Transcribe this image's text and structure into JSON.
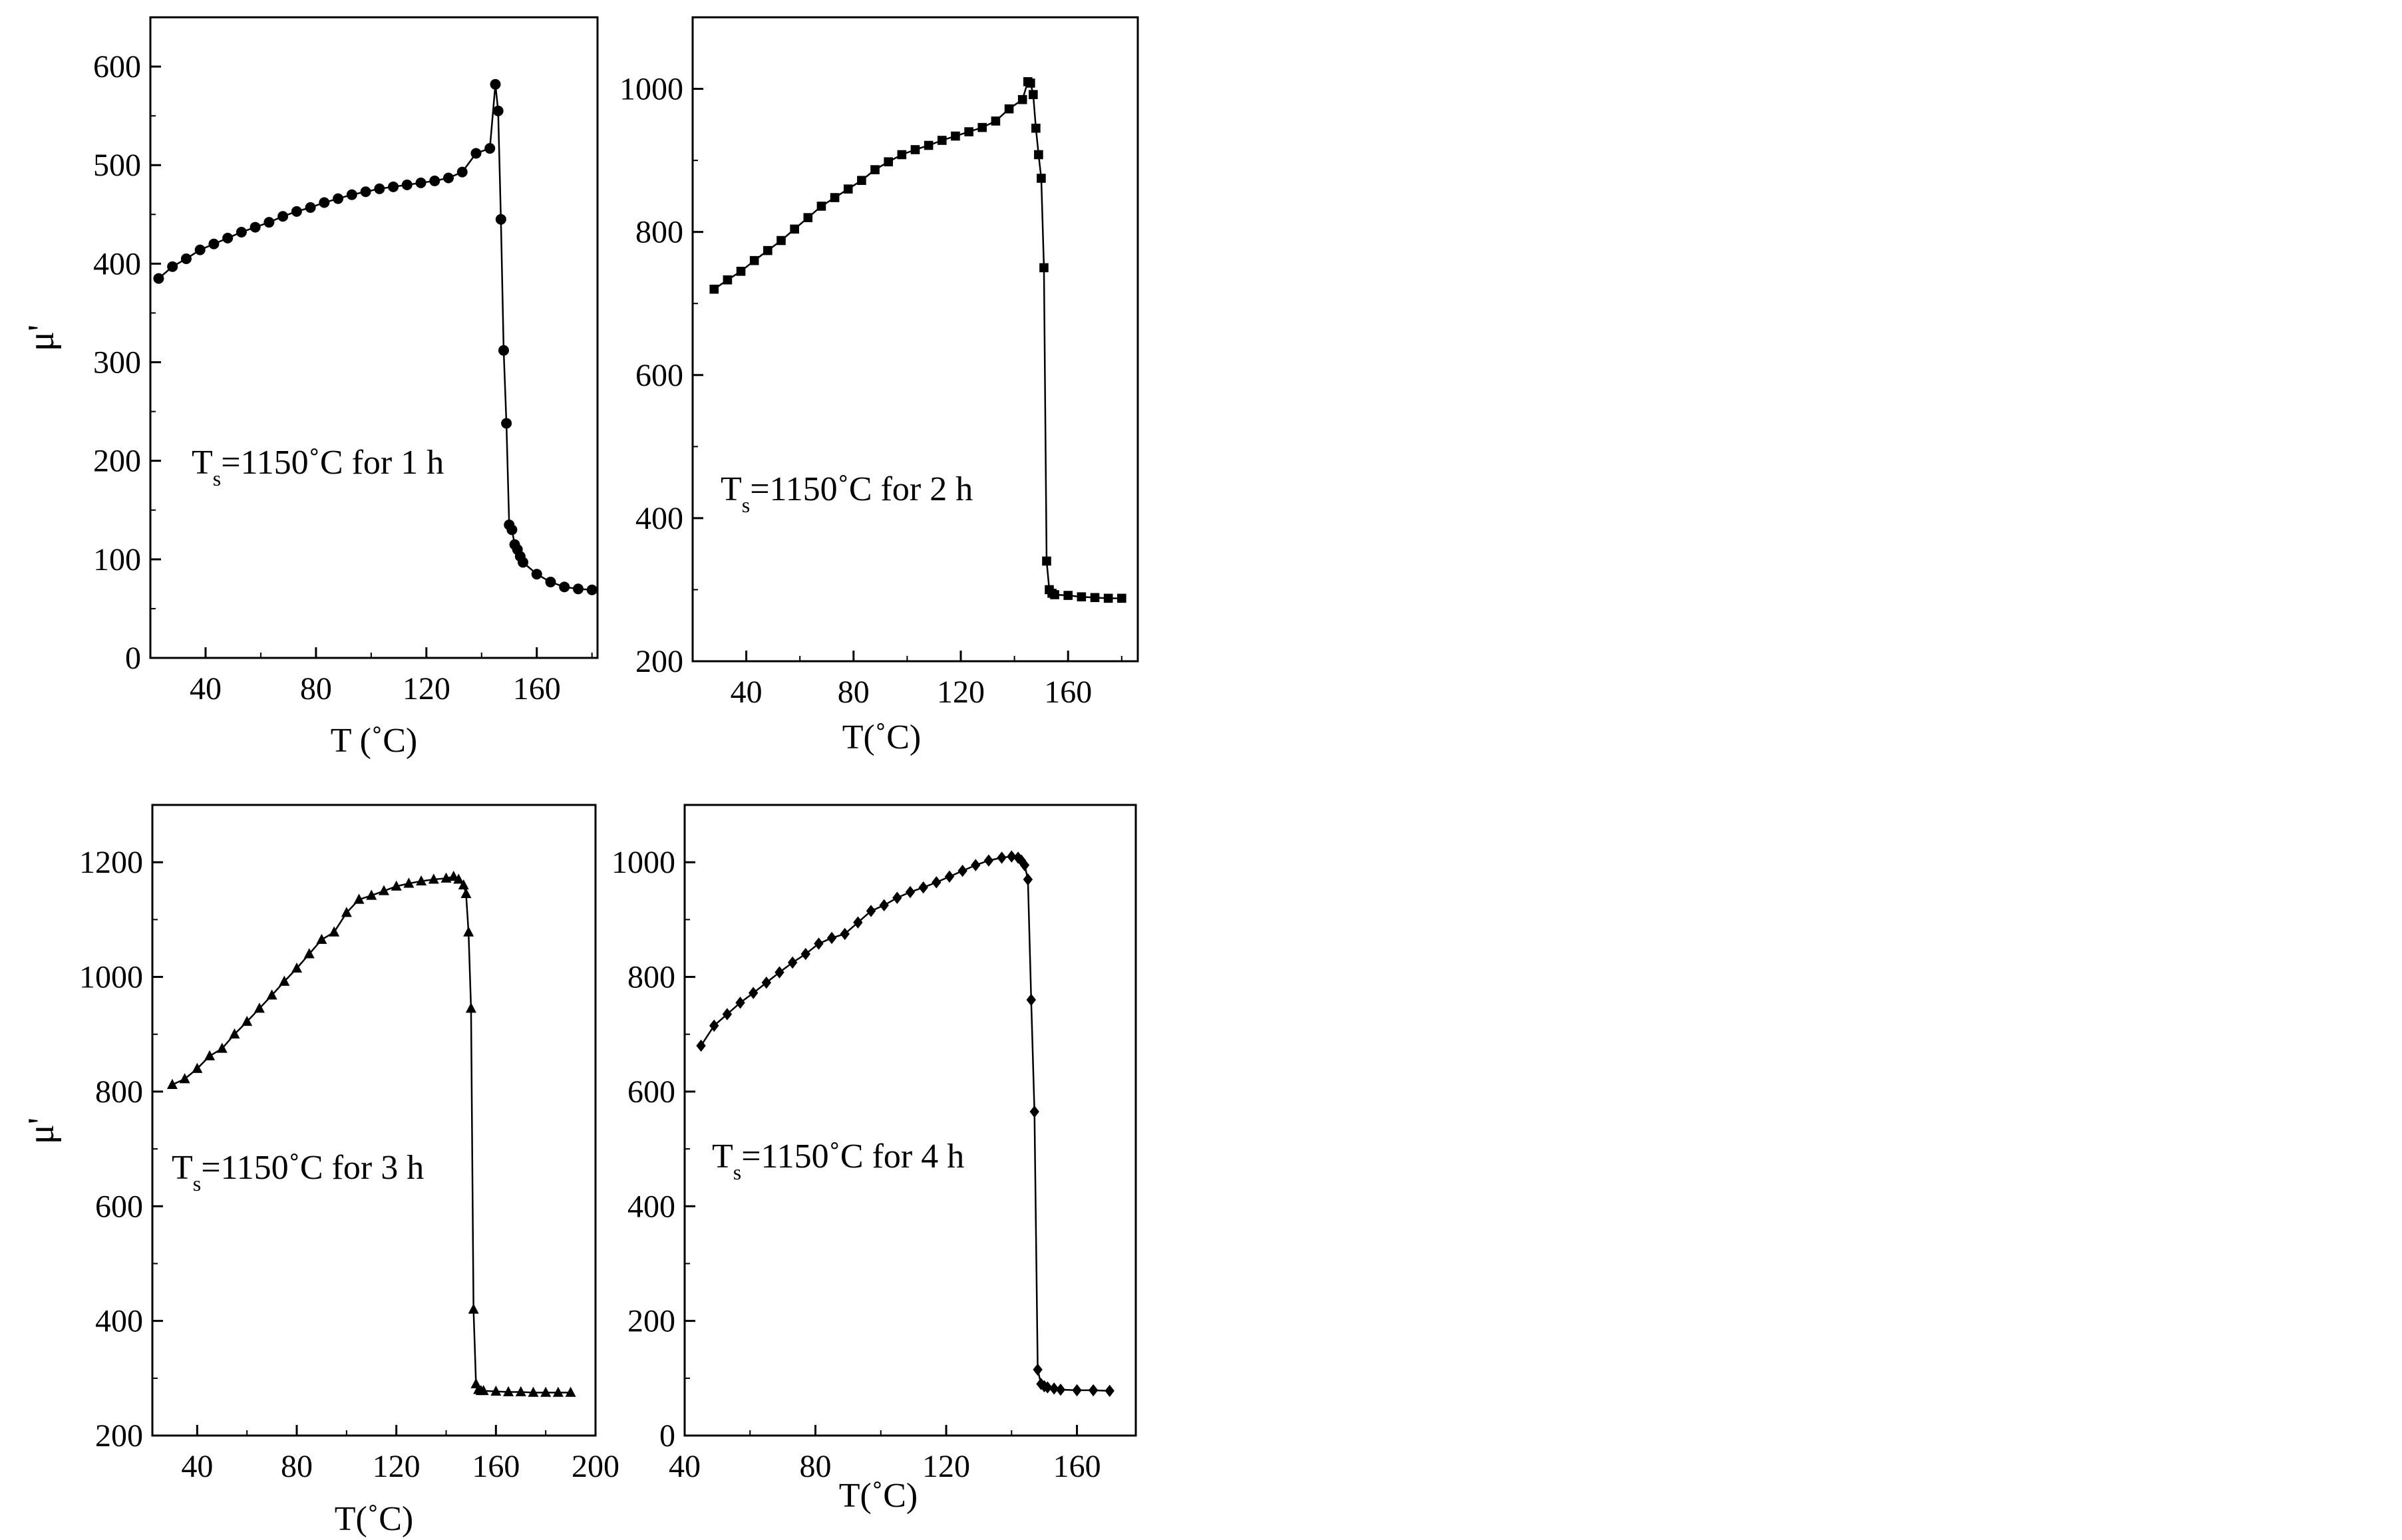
{
  "chart_data": [
    {
      "type": "line",
      "marker": "circle",
      "xlabel": "T (˚C)",
      "ylabel": "μ'",
      "xlim": [
        20,
        182
      ],
      "ylim": [
        0,
        650
      ],
      "xticks": [
        40,
        80,
        120,
        160
      ],
      "yticks": [
        0,
        100,
        200,
        300,
        400,
        500,
        600
      ],
      "annotation": {
        "main": "T",
        "sub": "s",
        "rest": "=1150˚C  for 1 h"
      },
      "series": [
        {
          "x": [
            23,
            28,
            33,
            38,
            43,
            48,
            53,
            58,
            63,
            68,
            73,
            78,
            83,
            88,
            93,
            98,
            103,
            108,
            113,
            118,
            123,
            128,
            133,
            138,
            143,
            145,
            146,
            147,
            148,
            149,
            150,
            151,
            152,
            153,
            154,
            155,
            160,
            165,
            170,
            175,
            180
          ],
          "y": [
            385,
            397,
            405,
            414,
            420,
            426,
            432,
            437,
            442,
            448,
            453,
            457,
            462,
            466,
            470,
            473,
            476,
            478,
            480,
            482,
            484,
            487,
            493,
            512,
            517,
            582,
            555,
            445,
            312,
            238,
            135,
            130,
            115,
            110,
            103,
            97,
            85,
            77,
            72,
            70,
            69
          ]
        }
      ]
    },
    {
      "type": "line",
      "marker": "square",
      "xlabel": "T(˚C)",
      "ylabel": "",
      "xlim": [
        20,
        186
      ],
      "ylim": [
        200,
        1100
      ],
      "xticks": [
        40,
        80,
        120,
        160
      ],
      "yticks": [
        200,
        400,
        600,
        800,
        1000
      ],
      "annotation": {
        "main": "T",
        "sub": "s",
        "rest": "=1150˚C  for 2 h"
      },
      "series": [
        {
          "x": [
            28,
            33,
            38,
            43,
            48,
            53,
            58,
            63,
            68,
            73,
            78,
            83,
            88,
            93,
            98,
            103,
            108,
            113,
            118,
            123,
            128,
            133,
            138,
            143,
            145,
            146,
            147,
            148,
            149,
            150,
            151,
            152,
            153,
            154,
            155,
            160,
            165,
            170,
            175,
            180
          ],
          "y": [
            720,
            733,
            745,
            760,
            774,
            788,
            804,
            820,
            836,
            848,
            860,
            872,
            887,
            898,
            908,
            915,
            921,
            928,
            934,
            940,
            946,
            955,
            972,
            985,
            1010,
            1008,
            992,
            945,
            908,
            875,
            750,
            340,
            300,
            295,
            293,
            292,
            290,
            289,
            288,
            288
          ]
        }
      ]
    },
    {
      "type": "line",
      "marker": "triangle",
      "xlabel": "T(˚C)",
      "ylabel": "μ'",
      "xlim": [
        22,
        200
      ],
      "ylim": [
        200,
        1300
      ],
      "xticks": [
        40,
        80,
        120,
        160,
        200
      ],
      "yticks": [
        200,
        400,
        600,
        800,
        1000,
        1200
      ],
      "annotation": {
        "main": "T",
        "sub": "s",
        "rest": "=1150˚C  for 3 h"
      },
      "series": [
        {
          "x": [
            30,
            35,
            40,
            45,
            50,
            55,
            60,
            65,
            70,
            75,
            80,
            85,
            90,
            95,
            100,
            105,
            110,
            115,
            120,
            125,
            130,
            135,
            140,
            143,
            145,
            147,
            148,
            149,
            150,
            151,
            152,
            153,
            154,
            155,
            160,
            165,
            170,
            175,
            180,
            185,
            190
          ],
          "y": [
            812,
            822,
            840,
            862,
            875,
            900,
            922,
            945,
            968,
            992,
            1015,
            1040,
            1065,
            1078,
            1112,
            1135,
            1142,
            1150,
            1158,
            1163,
            1167,
            1170,
            1172,
            1175,
            1170,
            1160,
            1145,
            1078,
            945,
            420,
            290,
            280,
            278,
            278,
            277,
            276,
            276,
            275,
            275,
            275,
            275
          ]
        }
      ]
    },
    {
      "type": "line",
      "marker": "diamond",
      "xlabel": "T(˚C)",
      "ylabel": "",
      "xlim": [
        40,
        178
      ],
      "ylim": [
        0,
        1100
      ],
      "xticks": [
        40,
        80,
        120,
        160
      ],
      "yticks": [
        0,
        200,
        400,
        600,
        800,
        1000
      ],
      "annotation": {
        "main": "T",
        "sub": "s",
        "rest": "=1150˚C  for 4 h"
      },
      "series": [
        {
          "x": [
            45,
            49,
            53,
            57,
            61,
            65,
            69,
            73,
            77,
            81,
            85,
            89,
            93,
            97,
            101,
            105,
            109,
            113,
            117,
            121,
            125,
            129,
            133,
            137,
            140,
            142,
            143,
            144,
            145,
            146,
            147,
            148,
            149,
            150,
            151,
            153,
            155,
            160,
            165,
            170
          ],
          "y": [
            680,
            715,
            735,
            755,
            772,
            790,
            808,
            825,
            840,
            858,
            868,
            875,
            895,
            915,
            925,
            938,
            948,
            956,
            965,
            975,
            985,
            995,
            1003,
            1008,
            1010,
            1008,
            1003,
            995,
            970,
            760,
            565,
            115,
            90,
            86,
            84,
            82,
            80,
            79,
            79,
            78
          ]
        }
      ]
    }
  ]
}
